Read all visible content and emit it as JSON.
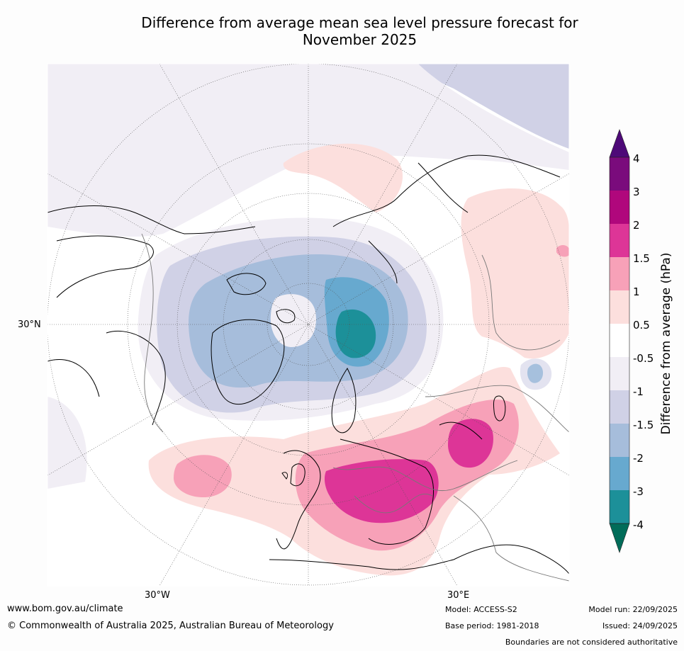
{
  "title_line1": "Difference from average mean sea level pressure forecast for",
  "title_line2": "November 2025",
  "map_labels": {
    "lat_30n": "30°N",
    "lon_30w": "30°W",
    "lon_30e": "30°E"
  },
  "colorbar": {
    "title": "Difference from average (hPa)",
    "ticks": [
      "4",
      "3",
      "2",
      "1.5",
      "1",
      "0.5",
      "-0.5",
      "-1",
      "-1.5",
      "-2",
      "-3",
      "-4"
    ],
    "colors": {
      "above_4": "#4e0a78",
      "3_to_4": "#7a0b7c",
      "2_to_3": "#b0077c",
      "1.5_to_2": "#dd3597",
      "1_to_1.5": "#f7a1b8",
      "0.5_to_1": "#fcdfdd",
      "-0.5_to_0.5": "#ffffff",
      "-1_to_-0.5": "#f1eef5",
      "-1.5_to_-1": "#d0d1e6",
      "-2_to_-1.5": "#a6bddb",
      "-3_to_-2": "#67a9cf",
      "-4_to_-3": "#1c9099",
      "below_-4": "#016c59"
    }
  },
  "footer": {
    "url": "www.bom.gov.au/climate",
    "copyright": "© Commonwealth of Australia 2025, Australian Bureau of Meteorology",
    "model": "Model: ACCESS-S2",
    "base_period": "Base period: 1981-2018",
    "model_run": "Model run: 22/09/2025",
    "issued": "Issued: 24/09/2025",
    "disclaimer": "Boundaries are not considered authoritative"
  }
}
